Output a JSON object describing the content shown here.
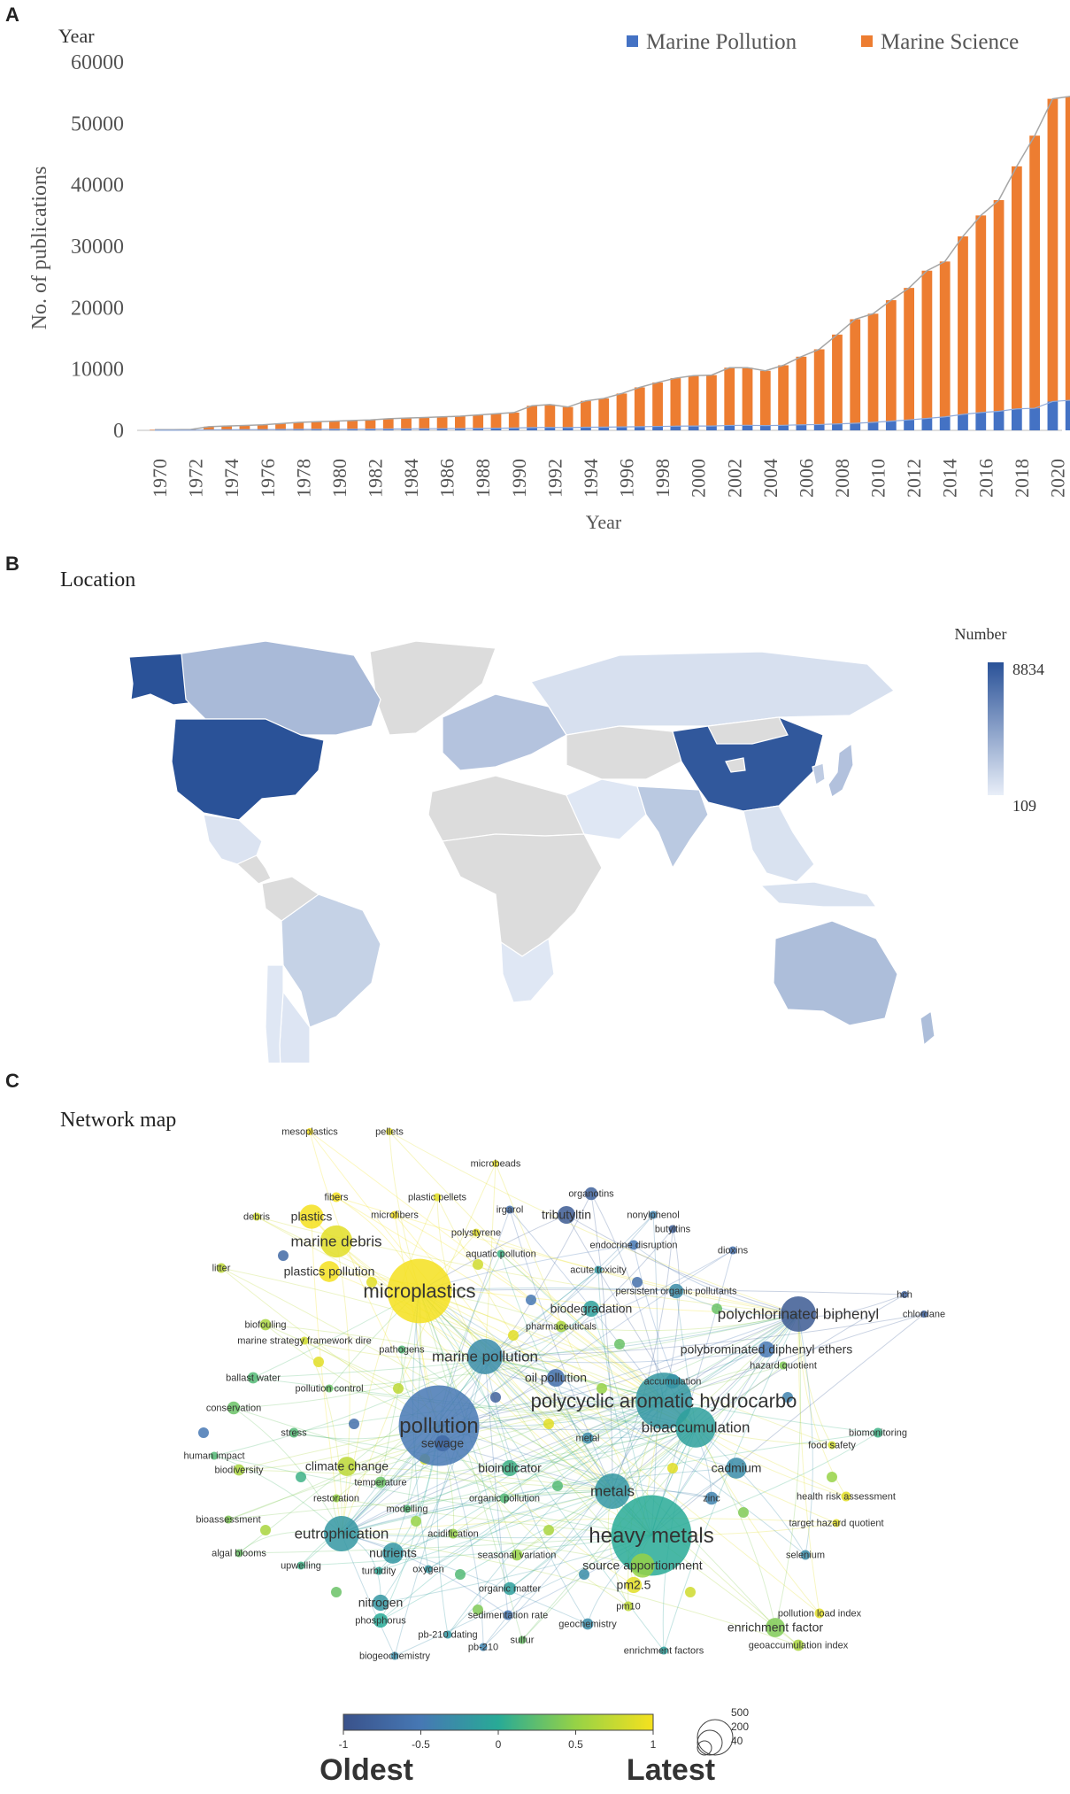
{
  "panels": {
    "a": {
      "letter": "A",
      "corner_label": "Year"
    },
    "b": {
      "letter": "B",
      "title": "Location"
    },
    "c": {
      "letter": "C",
      "title": "Network map"
    }
  },
  "chart_data": [
    {
      "type": "bar",
      "stacked": true,
      "ylabel": "No. of publications",
      "xlabel": "Year",
      "ylim": [
        0,
        60000
      ],
      "yticks": [
        0,
        10000,
        20000,
        30000,
        40000,
        50000,
        60000
      ],
      "legend_position": "top-right",
      "colors": {
        "Marine Pollution": "#4472C4",
        "Marine Science": "#ED7D31",
        "total_line": "#A6A6A6"
      },
      "categories": [
        1970,
        1971,
        1972,
        1973,
        1974,
        1975,
        1976,
        1977,
        1978,
        1979,
        1980,
        1981,
        1982,
        1983,
        1984,
        1985,
        1986,
        1987,
        1988,
        1989,
        1990,
        1991,
        1992,
        1993,
        1994,
        1995,
        1996,
        1997,
        1998,
        1999,
        2000,
        2001,
        2002,
        2003,
        2004,
        2005,
        2006,
        2007,
        2008,
        2009,
        2010,
        2011,
        2012,
        2013,
        2014,
        2015,
        2016,
        2017,
        2018,
        2019,
        2020,
        2021
      ],
      "xtick_labels": [
        "1970",
        "1972",
        "1974",
        "1976",
        "1978",
        "1980",
        "1982",
        "1984",
        "1986",
        "1988",
        "1990",
        "1992",
        "1994",
        "1996",
        "1998",
        "2000",
        "2002",
        "2004",
        "2006",
        "2008",
        "2010",
        "2012",
        "2014",
        "2016",
        "2018",
        "2020"
      ],
      "series": [
        {
          "name": "Marine Pollution",
          "values": [
            20,
            20,
            30,
            80,
            100,
            110,
            120,
            140,
            160,
            170,
            180,
            190,
            210,
            220,
            240,
            260,
            280,
            300,
            320,
            350,
            380,
            450,
            480,
            450,
            500,
            520,
            560,
            600,
            640,
            680,
            700,
            700,
            800,
            820,
            780,
            820,
            900,
            950,
            1050,
            1150,
            1300,
            1500,
            1700,
            1950,
            2200,
            2600,
            2900,
            3100,
            3500,
            3600,
            4700,
            4900
          ]
        },
        {
          "name": "Marine Science",
          "values": [
            80,
            80,
            120,
            520,
            600,
            690,
            780,
            960,
            1140,
            1230,
            1320,
            1410,
            1490,
            1680,
            1760,
            1840,
            1920,
            2000,
            2180,
            2350,
            2520,
            3550,
            3720,
            3350,
            4300,
            4680,
            5440,
            6400,
            7160,
            7820,
            8200,
            8300,
            9400,
            9380,
            8920,
            9780,
            11100,
            12250,
            14550,
            16950,
            17700,
            19700,
            21500,
            24050,
            25300,
            29000,
            32100,
            34400,
            39500,
            44400,
            49300,
            49500
          ]
        }
      ]
    },
    {
      "type": "map",
      "legend_title": "Number",
      "legend_max": "8834",
      "legend_min": "109",
      "color_scale": [
        "#E8EEF8",
        "#2A5298"
      ],
      "regions": [
        {
          "name": "United States",
          "value": 8834
        },
        {
          "name": "China",
          "value": 8500
        },
        {
          "name": "Alaska",
          "value": 8834
        },
        {
          "name": "Canada",
          "value": 3000
        },
        {
          "name": "Europe",
          "value": 2500
        },
        {
          "name": "Russia",
          "value": 900
        },
        {
          "name": "Australia",
          "value": 2800
        },
        {
          "name": "India",
          "value": 2200
        },
        {
          "name": "Brazil",
          "value": 1700
        },
        {
          "name": "Japan",
          "value": 2600
        },
        {
          "name": "South Korea",
          "value": 2000
        },
        {
          "name": "Mexico",
          "value": 700
        },
        {
          "name": "Argentina",
          "value": 600
        },
        {
          "name": "Chile",
          "value": 500
        },
        {
          "name": "South Africa",
          "value": 500
        },
        {
          "name": "Southeast Asia",
          "value": 800
        },
        {
          "name": "Middle East",
          "value": 500
        }
      ]
    },
    {
      "type": "network",
      "colorbar": {
        "ticks": [
          "-1",
          "-0.5",
          "0",
          "0.5",
          "1"
        ],
        "label_left": "Oldest",
        "label_right": "Latest"
      },
      "size_legend": [
        "500",
        "200",
        "40"
      ],
      "nodes": [
        {
          "label": "mesoplastics",
          "v": 1,
          "size": 6
        },
        {
          "label": "pellets",
          "v": 0.9,
          "size": 6
        },
        {
          "label": "microbeads",
          "v": 0.9,
          "size": 6
        },
        {
          "label": "organotins",
          "v": -0.8,
          "size": 16
        },
        {
          "label": "fibers",
          "v": 1,
          "size": 12
        },
        {
          "label": "plastic pellets",
          "v": 0.9,
          "size": 10
        },
        {
          "label": "irgarol",
          "v": -0.6,
          "size": 10
        },
        {
          "label": "tributyltin",
          "v": -0.9,
          "size": 22
        },
        {
          "label": "nonylphenol",
          "v": -0.4,
          "size": 10
        },
        {
          "label": "butyltins",
          "v": -0.8,
          "size": 10
        },
        {
          "label": "debris",
          "v": 0.8,
          "size": 10
        },
        {
          "label": "plastics",
          "v": 1,
          "size": 30
        },
        {
          "label": "microfibers",
          "v": 1,
          "size": 10
        },
        {
          "label": "polystyrene",
          "v": 0.9,
          "size": 10
        },
        {
          "label": "marine debris",
          "v": 0.9,
          "size": 40
        },
        {
          "label": "aquatic pollution",
          "v": 0.1,
          "size": 10
        },
        {
          "label": "endocrine disruption",
          "v": -0.5,
          "size": 12
        },
        {
          "label": "dioxins",
          "v": -0.6,
          "size": 10
        },
        {
          "label": "litter",
          "v": 0.7,
          "size": 12
        },
        {
          "label": "plastics pollution",
          "v": 1,
          "size": 26
        },
        {
          "label": "acute toxicity",
          "v": -0.2,
          "size": 10
        },
        {
          "label": "microplastics",
          "v": 1,
          "size": 80
        },
        {
          "label": "persistent organic pollutants",
          "v": -0.3,
          "size": 18
        },
        {
          "label": "biodegradation",
          "v": -0.1,
          "size": 20
        },
        {
          "label": "polychlorinated biphenyl",
          "v": -0.9,
          "size": 44
        },
        {
          "label": "hch",
          "v": -0.8,
          "size": 8
        },
        {
          "label": "chlordane",
          "v": -0.8,
          "size": 8
        },
        {
          "label": "biofouling",
          "v": 0.6,
          "size": 14
        },
        {
          "label": "pharmaceuticals",
          "v": 0.6,
          "size": 14
        },
        {
          "label": "marine strategy framework dire",
          "v": 0.8,
          "size": 10
        },
        {
          "label": "pathogens",
          "v": 0.2,
          "size": 10
        },
        {
          "label": "marine pollution",
          "v": -0.3,
          "size": 44
        },
        {
          "label": "polybrominated diphenyl ethers",
          "v": -0.5,
          "size": 20
        },
        {
          "label": "hazard quotient",
          "v": 0.4,
          "size": 10
        },
        {
          "label": "ballast water",
          "v": 0.2,
          "size": 14
        },
        {
          "label": "oil pollution",
          "v": -0.6,
          "size": 22
        },
        {
          "label": "accumulation",
          "v": -0.4,
          "size": 18
        },
        {
          "label": "pollution control",
          "v": 0.3,
          "size": 10
        },
        {
          "label": "conservation",
          "v": 0.3,
          "size": 16
        },
        {
          "label": "polycyclic aromatic hydrocarbo",
          "v": -0.2,
          "size": 70
        },
        {
          "label": "pollution",
          "v": -0.5,
          "size": 100
        },
        {
          "label": "bioaccumulation",
          "v": -0.1,
          "size": 50
        },
        {
          "label": "stress",
          "v": 0.2,
          "size": 12
        },
        {
          "label": "metal",
          "v": -0.3,
          "size": 14
        },
        {
          "label": "biomonitoring",
          "v": 0.1,
          "size": 12
        },
        {
          "label": "sewage",
          "v": -0.7,
          "size": 20
        },
        {
          "label": "food safety",
          "v": 0.8,
          "size": 10
        },
        {
          "label": "human impact",
          "v": 0.2,
          "size": 10
        },
        {
          "label": "climate change",
          "v": 0.7,
          "size": 24
        },
        {
          "label": "bioindicator",
          "v": 0.1,
          "size": 20
        },
        {
          "label": "cadmium",
          "v": -0.3,
          "size": 26
        },
        {
          "label": "biodiversity",
          "v": 0.6,
          "size": 14
        },
        {
          "label": "temperature",
          "v": 0.3,
          "size": 14
        },
        {
          "label": "metals",
          "v": -0.2,
          "size": 44
        },
        {
          "label": "zinc",
          "v": -0.4,
          "size": 16
        },
        {
          "label": "health risk assessment",
          "v": 0.9,
          "size": 12
        },
        {
          "label": "restoration",
          "v": 0.5,
          "size": 10
        },
        {
          "label": "organic pollution",
          "v": 0.2,
          "size": 12
        },
        {
          "label": "modelling",
          "v": 0.2,
          "size": 10
        },
        {
          "label": "target hazard quotient",
          "v": 0.9,
          "size": 10
        },
        {
          "label": "bioassessment",
          "v": 0.4,
          "size": 10
        },
        {
          "label": "heavy metals",
          "v": 0.0,
          "size": 100
        },
        {
          "label": "eutrophication",
          "v": -0.2,
          "size": 44
        },
        {
          "label": "acidification",
          "v": 0.5,
          "size": 12
        },
        {
          "label": "selenium",
          "v": -0.3,
          "size": 12
        },
        {
          "label": "algal blooms",
          "v": 0.3,
          "size": 10
        },
        {
          "label": "nutrients",
          "v": -0.2,
          "size": 26
        },
        {
          "label": "seasonal variation",
          "v": 0.5,
          "size": 14
        },
        {
          "label": "upwelling",
          "v": 0.1,
          "size": 10
        },
        {
          "label": "turbidity",
          "v": 0.0,
          "size": 10
        },
        {
          "label": "oxygen",
          "v": -0.2,
          "size": 10
        },
        {
          "label": "source apportionment",
          "v": 0.5,
          "size": 30
        },
        {
          "label": "pm2.5",
          "v": 0.9,
          "size": 20
        },
        {
          "label": "organic matter",
          "v": -0.1,
          "size": 16
        },
        {
          "label": "nitrogen",
          "v": -0.2,
          "size": 20
        },
        {
          "label": "pm10",
          "v": 0.7,
          "size": 12
        },
        {
          "label": "pollution load index",
          "v": 0.9,
          "size": 12
        },
        {
          "label": "sedimentation rate",
          "v": -0.5,
          "size": 12
        },
        {
          "label": "phosphorus",
          "v": 0.0,
          "size": 18
        },
        {
          "label": "enrichment factor",
          "v": 0.4,
          "size": 24
        },
        {
          "label": "geochemistry",
          "v": -0.3,
          "size": 14
        },
        {
          "label": "pb-210 dating",
          "v": -0.2,
          "size": 10
        },
        {
          "label": "sulfur",
          "v": 0.3,
          "size": 10
        },
        {
          "label": "geoaccumulation index",
          "v": 0.6,
          "size": 14
        },
        {
          "label": "pb-210",
          "v": -0.4,
          "size": 10
        },
        {
          "label": "enrichment factors",
          "v": -0.1,
          "size": 10
        },
        {
          "label": "biogeochemistry",
          "v": -0.3,
          "size": 10
        }
      ]
    }
  ]
}
